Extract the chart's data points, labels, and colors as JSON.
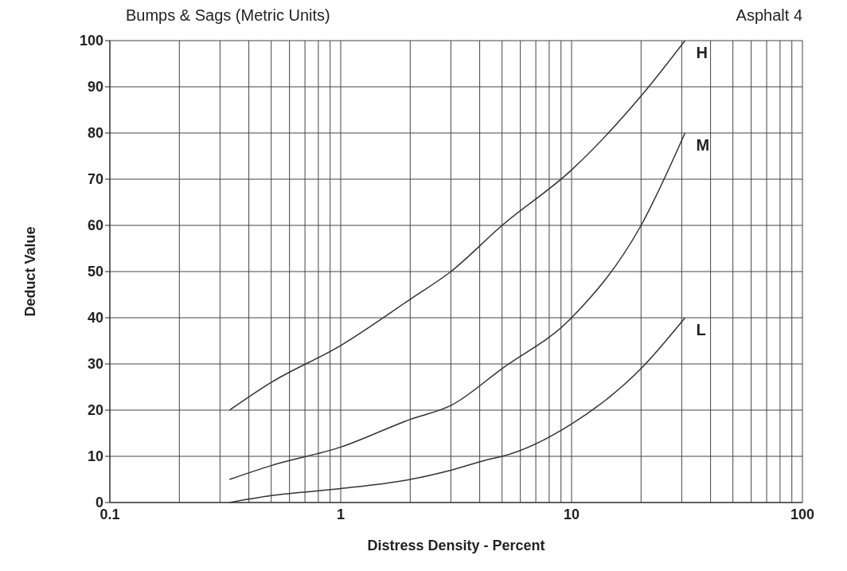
{
  "chart_data": {
    "type": "line",
    "title": "Bumps & Sags (Metric Units)",
    "subtitle": "Asphalt 4",
    "xlabel": "Distress Density - Percent",
    "ylabel": "Deduct Value",
    "log": "x",
    "grid": true,
    "xlim": [
      0.1,
      100
    ],
    "xticks": [
      0.1,
      {
        "value": 0.2,
        "label": null
      },
      {
        "value": 0.3,
        "label": null
      },
      {
        "value": 0.4,
        "label": null
      },
      {
        "value": 0.5,
        "label": null
      },
      {
        "value": 0.6,
        "label": null
      },
      {
        "value": 0.7,
        "label": null
      },
      {
        "value": 0.8,
        "label": null
      },
      {
        "value": 0.9,
        "label": null
      },
      1,
      {
        "value": 2,
        "label": null
      },
      {
        "value": 3,
        "label": null
      },
      {
        "value": 4,
        "label": null
      },
      {
        "value": 5,
        "label": null
      },
      {
        "value": 6,
        "label": null
      },
      {
        "value": 7,
        "label": null
      },
      {
        "value": 8,
        "label": null
      },
      {
        "value": 9,
        "label": null
      },
      10,
      {
        "value": 20,
        "label": null
      },
      {
        "value": 30,
        "label": null
      },
      {
        "value": 40,
        "label": null
      },
      {
        "value": 50,
        "label": null
      },
      {
        "value": 60,
        "label": null
      },
      {
        "value": 70,
        "label": null
      },
      {
        "value": 80,
        "label": null
      },
      {
        "value": 90,
        "label": null
      },
      100
    ],
    "ylim": [
      0,
      100
    ],
    "yticks": [
      0,
      10,
      20,
      30,
      40,
      50,
      60,
      70,
      80,
      90,
      100
    ],
    "series": [
      {
        "name": "H",
        "color": "#333333",
        "x": [
          0.33,
          0.5,
          1,
          2,
          3,
          5,
          10,
          20,
          31
        ],
        "values": [
          20,
          26,
          34,
          44,
          50,
          60,
          72,
          88,
          100
        ]
      },
      {
        "name": "M",
        "color": "#333333",
        "x": [
          0.33,
          0.5,
          1,
          2,
          3,
          5,
          10,
          20,
          31
        ],
        "values": [
          5,
          8,
          12,
          18,
          21,
          29,
          40,
          60,
          80
        ]
      },
      {
        "name": "L",
        "color": "#333333",
        "x": [
          0.33,
          0.5,
          1,
          2,
          3,
          4.5,
          5,
          10,
          20,
          31
        ],
        "values": [
          0,
          1.5,
          3,
          5,
          7,
          9.5,
          10,
          17,
          29,
          40
        ]
      }
    ]
  }
}
